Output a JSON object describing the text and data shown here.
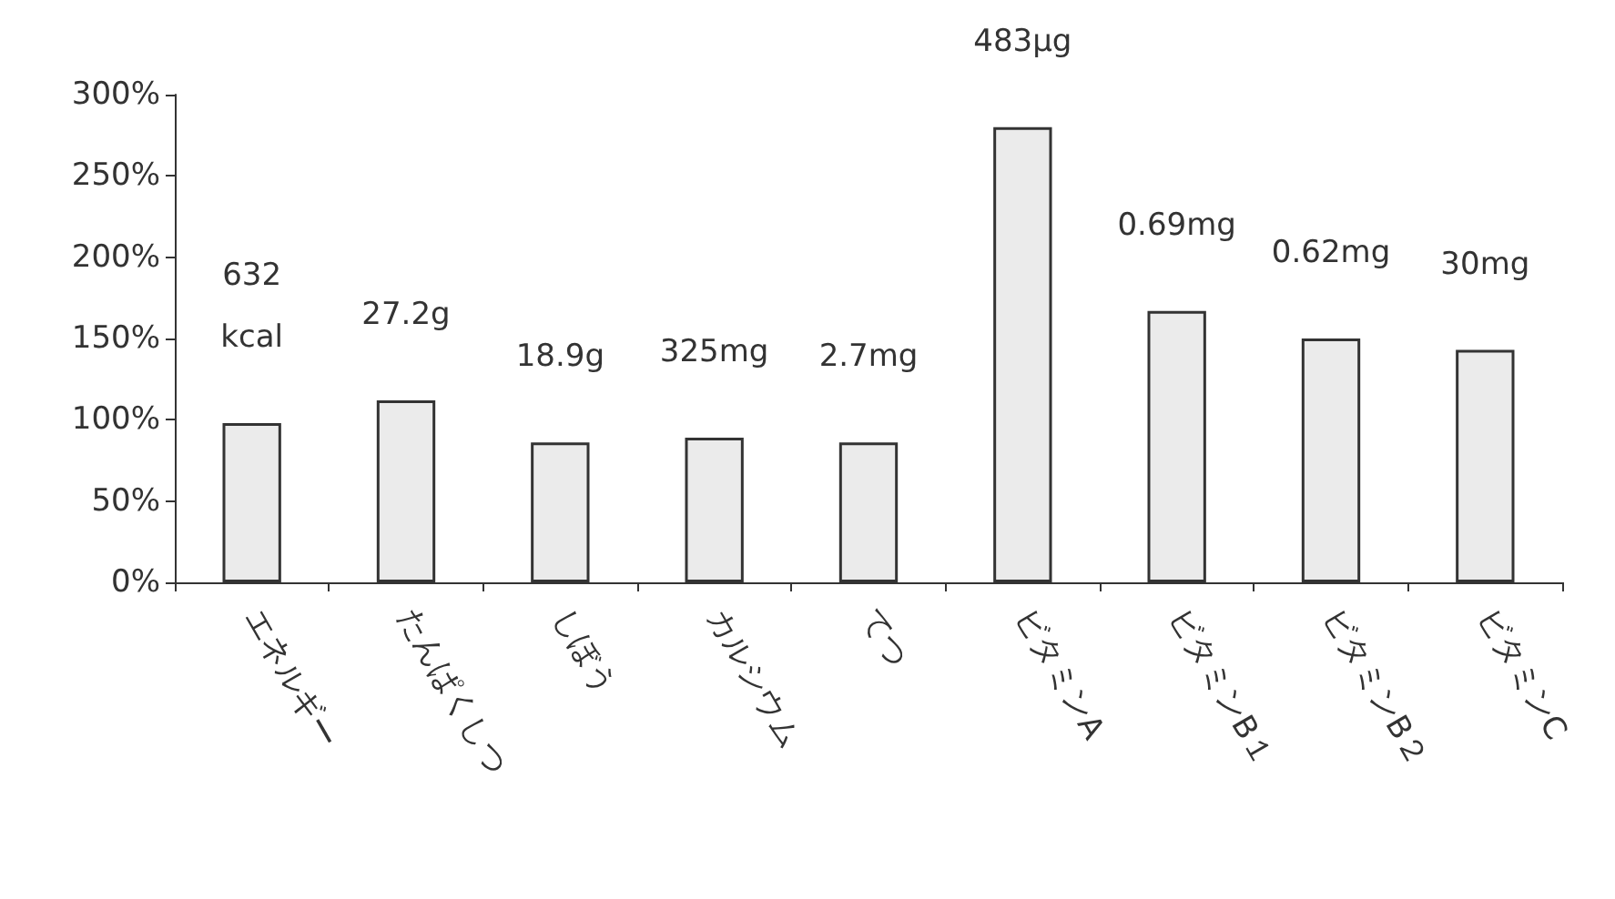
{
  "chart_data": {
    "type": "bar",
    "categories": [
      "エネルギー",
      "たんぱくしつ",
      "しぼう",
      "カルシウム",
      "てつ",
      "ビタミンA",
      "ビタミンB１",
      "ビタミンB２",
      "ビタミンC"
    ],
    "values": [
      98,
      112,
      86,
      89,
      86,
      280,
      167,
      150,
      143
    ],
    "annotations": [
      "632\nkcal",
      "27.2g",
      "18.9g",
      "325mg",
      "2.7mg",
      "483μg",
      "0.69mg",
      "0.62mg",
      "30mg"
    ],
    "color": "#ebebeb",
    "ylim": [
      0,
      300
    ],
    "yticks": [
      {
        "value": 0,
        "label": "0%"
      },
      {
        "value": 50,
        "label": "50%"
      },
      {
        "value": 100,
        "label": "100%"
      },
      {
        "value": 150,
        "label": "150%"
      },
      {
        "value": 200,
        "label": "200%"
      },
      {
        "value": 250,
        "label": "250%"
      },
      {
        "value": 300,
        "label": "300%"
      }
    ],
    "grid": false
  }
}
